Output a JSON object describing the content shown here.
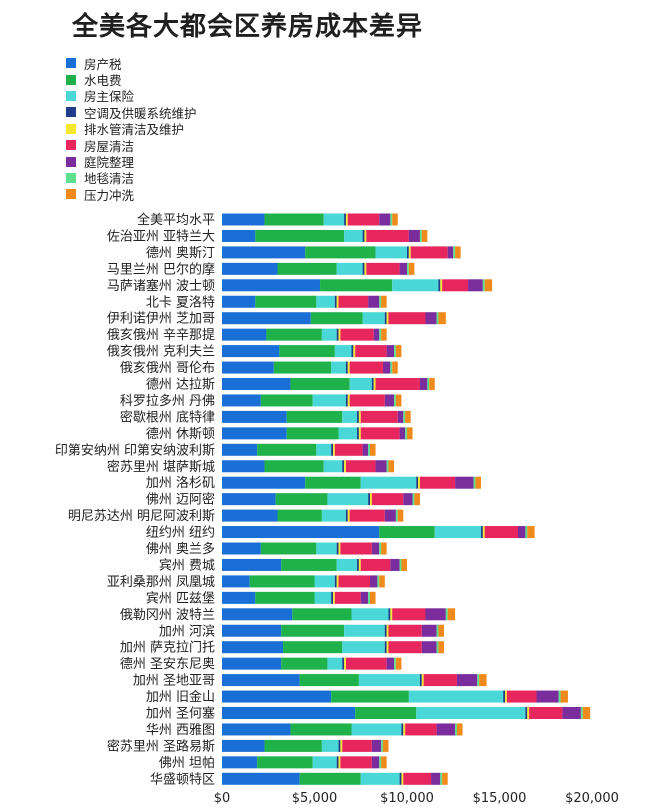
{
  "chart_data": {
    "type": "bar",
    "orientation": "horizontal",
    "stacked": true,
    "title": "全美各大都会区养房成本差异",
    "xlabel": "",
    "ylabel": "",
    "xlim": [
      0,
      20000
    ],
    "x_ticks": [
      0,
      5000,
      10000,
      15000,
      20000
    ],
    "x_tick_labels": [
      "$0",
      "$5,000",
      "$10,000",
      "$15,000",
      "$20,000"
    ],
    "grid": false,
    "legend_position": "top-left",
    "categories": [
      "全美平均水平",
      "佐治亚州 亚特兰大",
      "德州 奥斯汀",
      "马里兰州 巴尔的摩",
      "马萨诸塞州 波士顿",
      "北卡 夏洛特",
      "伊利诺伊州 芝加哥",
      "俄亥俄州 辛辛那提",
      "俄亥俄州 克利夫兰",
      "俄亥俄州 哥伦布",
      "德州 达拉斯",
      "科罗拉多州 丹佛",
      "密歇根州 底特律",
      "德州 休斯顿",
      "印第安纳州 印第安纳波利斯",
      "密苏里州 堪萨斯城",
      "加州 洛杉矶",
      "佛州 迈阿密",
      "明尼苏达州 明尼阿波利斯",
      "纽约州 纽约",
      "佛州 奥兰多",
      "宾州 费城",
      "亚利桑那州 凤凰城",
      "宾州 匹兹堡",
      "俄勒冈州 波特兰",
      "加州 河滨",
      "加州 萨克拉门托",
      "德州 圣安东尼奥",
      "加州 圣地亚哥",
      "加州 旧金山",
      "加州 圣何塞",
      "华州 西雅图",
      "密苏里州 圣路易斯",
      "佛州 坦帕",
      "华盛顿特区"
    ],
    "series": [
      {
        "name": "房产税",
        "color": "#1a6fd6",
        "values": [
          2300,
          1800,
          4500,
          3000,
          5300,
          1800,
          4800,
          2400,
          3100,
          2800,
          3700,
          2100,
          3500,
          3500,
          1900,
          2300,
          4500,
          2900,
          3000,
          8500,
          2100,
          3200,
          1500,
          1800,
          3800,
          3200,
          3300,
          3200,
          4200,
          5900,
          7200,
          3700,
          2300,
          1900,
          4200
        ]
      },
      {
        "name": "水电费",
        "color": "#1fb24a",
        "values": [
          3200,
          4800,
          3800,
          3200,
          3900,
          3300,
          2800,
          3000,
          3000,
          3100,
          3200,
          2800,
          3000,
          2800,
          3200,
          3200,
          3000,
          2800,
          2400,
          3000,
          3000,
          3000,
          3500,
          3200,
          3200,
          3400,
          3200,
          2500,
          3200,
          4200,
          3300,
          3300,
          3100,
          3000,
          3300
        ]
      },
      {
        "name": "房主保险",
        "color": "#4ad7d7",
        "values": [
          1100,
          1000,
          1700,
          1400,
          2500,
          1000,
          1200,
          800,
          900,
          800,
          1200,
          1800,
          800,
          1000,
          800,
          1000,
          3000,
          2200,
          1300,
          2500,
          1100,
          1100,
          1100,
          900,
          2000,
          2200,
          2300,
          800,
          3300,
          5100,
          5900,
          2700,
          900,
          1300,
          2100
        ]
      },
      {
        "name": "空调及供暖系统维护",
        "color": "#1f3d8a",
        "values": [
          100,
          100,
          100,
          100,
          100,
          100,
          100,
          100,
          100,
          100,
          100,
          100,
          100,
          100,
          100,
          100,
          100,
          100,
          100,
          100,
          100,
          100,
          100,
          100,
          100,
          100,
          100,
          100,
          100,
          100,
          100,
          100,
          100,
          100,
          100
        ]
      },
      {
        "name": "排水管清洁及维护",
        "color": "#f5e62e",
        "values": [
          100,
          100,
          100,
          100,
          100,
          100,
          100,
          100,
          100,
          100,
          100,
          100,
          100,
          100,
          100,
          100,
          100,
          100,
          100,
          100,
          100,
          100,
          100,
          100,
          100,
          100,
          100,
          100,
          100,
          100,
          100,
          100,
          100,
          100,
          100
        ]
      },
      {
        "name": "房屋清洁",
        "color": "#e8265e",
        "values": [
          1700,
          2300,
          2000,
          1800,
          1400,
          1600,
          2000,
          1800,
          1700,
          1800,
          2400,
          1900,
          2000,
          2100,
          1500,
          1600,
          1900,
          1700,
          1900,
          1800,
          1700,
          1600,
          1700,
          1400,
          1800,
          1800,
          1800,
          2200,
          1800,
          1600,
          1800,
          1700,
          1600,
          1700,
          1500
        ]
      },
      {
        "name": "庭院整理",
        "color": "#7b2d9e",
        "values": [
          600,
          600,
          300,
          400,
          800,
          600,
          600,
          300,
          400,
          400,
          400,
          500,
          300,
          300,
          300,
          600,
          1000,
          500,
          600,
          400,
          400,
          500,
          400,
          400,
          1100,
          800,
          800,
          400,
          1100,
          1200,
          1000,
          1000,
          500,
          400,
          500
        ]
      },
      {
        "name": "地毯清洁",
        "color": "#5be08e",
        "values": [
          100,
          100,
          100,
          100,
          100,
          100,
          100,
          100,
          100,
          100,
          100,
          100,
          100,
          100,
          100,
          100,
          100,
          100,
          100,
          100,
          100,
          100,
          100,
          100,
          100,
          100,
          100,
          100,
          100,
          100,
          100,
          100,
          100,
          100,
          100
        ]
      },
      {
        "name": "压力冲洗",
        "color": "#f08a1c",
        "values": [
          300,
          300,
          300,
          300,
          400,
          300,
          400,
          300,
          300,
          300,
          300,
          300,
          300,
          300,
          300,
          300,
          300,
          300,
          300,
          400,
          300,
          300,
          300,
          300,
          400,
          300,
          300,
          300,
          400,
          400,
          400,
          300,
          300,
          300,
          300
        ]
      }
    ]
  }
}
